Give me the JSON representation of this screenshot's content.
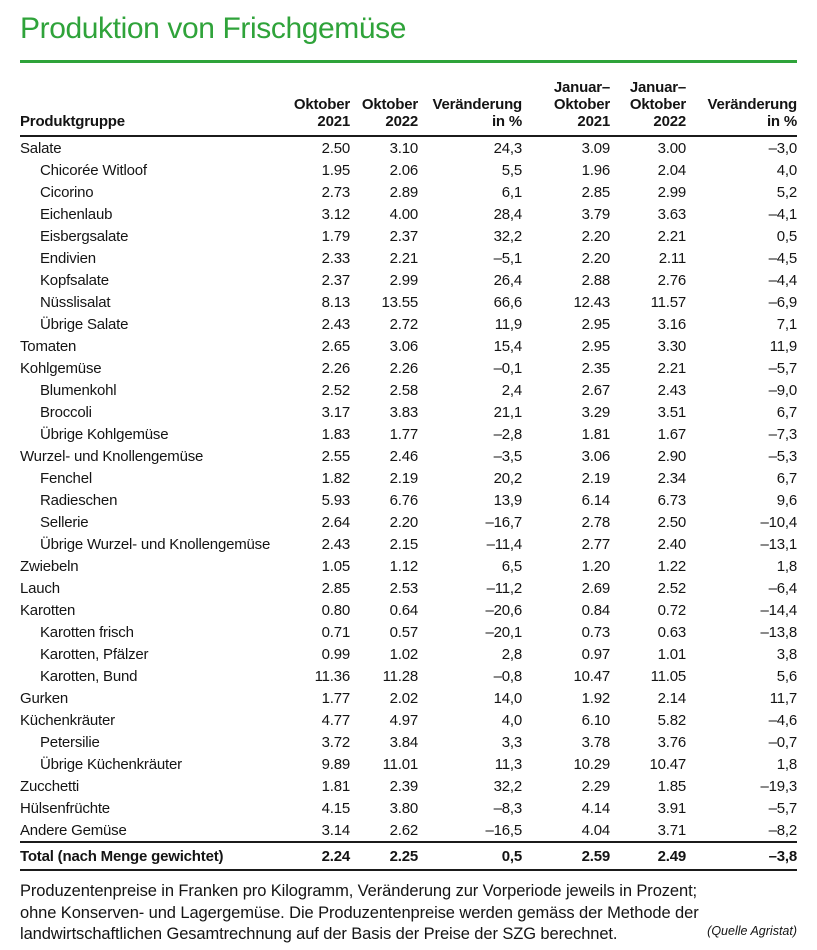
{
  "title": "Produktion von Frischgemüse",
  "colors": {
    "accent_green": "#2fa33a",
    "text": "#141414",
    "rule": "#1b1b1b"
  },
  "table": {
    "header": {
      "product_col": "Produktgruppe",
      "cols": [
        "Oktober\n2021",
        "Oktober\n2022",
        "Veränderung\nin %",
        "Januar–\nOktober\n2021",
        "Januar–\nOktober\n2022",
        "Veränderung\nin %"
      ]
    },
    "rows": [
      {
        "label": "Salate",
        "indent": false,
        "total": false,
        "v": [
          "2.50",
          "3.10",
          "24,3",
          "3.09",
          "3.00",
          "–3,0"
        ]
      },
      {
        "label": "Chicorée Witloof",
        "indent": true,
        "total": false,
        "v": [
          "1.95",
          "2.06",
          "5,5",
          "1.96",
          "2.04",
          "4,0"
        ]
      },
      {
        "label": "Cicorino",
        "indent": true,
        "total": false,
        "v": [
          "2.73",
          "2.89",
          "6,1",
          "2.85",
          "2.99",
          "5,2"
        ]
      },
      {
        "label": "Eichenlaub",
        "indent": true,
        "total": false,
        "v": [
          "3.12",
          "4.00",
          "28,4",
          "3.79",
          "3.63",
          "–4,1"
        ]
      },
      {
        "label": "Eisbergsalate",
        "indent": true,
        "total": false,
        "v": [
          "1.79",
          "2.37",
          "32,2",
          "2.20",
          "2.21",
          "0,5"
        ]
      },
      {
        "label": "Endivien",
        "indent": true,
        "total": false,
        "v": [
          "2.33",
          "2.21",
          "–5,1",
          "2.20",
          "2.11",
          "–4,5"
        ]
      },
      {
        "label": "Kopfsalate",
        "indent": true,
        "total": false,
        "v": [
          "2.37",
          "2.99",
          "26,4",
          "2.88",
          "2.76",
          "–4,4"
        ]
      },
      {
        "label": "Nüsslisalat",
        "indent": true,
        "total": false,
        "v": [
          "8.13",
          "13.55",
          "66,6",
          "12.43",
          "11.57",
          "–6,9"
        ]
      },
      {
        "label": "Übrige Salate",
        "indent": true,
        "total": false,
        "v": [
          "2.43",
          "2.72",
          "11,9",
          "2.95",
          "3.16",
          "7,1"
        ]
      },
      {
        "label": "Tomaten",
        "indent": false,
        "total": false,
        "v": [
          "2.65",
          "3.06",
          "15,4",
          "2.95",
          "3.30",
          "11,9"
        ]
      },
      {
        "label": "Kohlgemüse",
        "indent": false,
        "total": false,
        "v": [
          "2.26",
          "2.26",
          "–0,1",
          "2.35",
          "2.21",
          "–5,7"
        ]
      },
      {
        "label": "Blumenkohl",
        "indent": true,
        "total": false,
        "v": [
          "2.52",
          "2.58",
          "2,4",
          "2.67",
          "2.43",
          "–9,0"
        ]
      },
      {
        "label": "Broccoli",
        "indent": true,
        "total": false,
        "v": [
          "3.17",
          "3.83",
          "21,1",
          "3.29",
          "3.51",
          "6,7"
        ]
      },
      {
        "label": "Übrige Kohlgemüse",
        "indent": true,
        "total": false,
        "v": [
          "1.83",
          "1.77",
          "–2,8",
          "1.81",
          "1.67",
          "–7,3"
        ]
      },
      {
        "label": "Wurzel- und Knollengemüse",
        "indent": false,
        "total": false,
        "v": [
          "2.55",
          "2.46",
          "–3,5",
          "3.06",
          "2.90",
          "–5,3"
        ]
      },
      {
        "label": "Fenchel",
        "indent": true,
        "total": false,
        "v": [
          "1.82",
          "2.19",
          "20,2",
          "2.19",
          "2.34",
          "6,7"
        ]
      },
      {
        "label": "Radieschen",
        "indent": true,
        "total": false,
        "v": [
          "5.93",
          "6.76",
          "13,9",
          "6.14",
          "6.73",
          "9,6"
        ]
      },
      {
        "label": "Sellerie",
        "indent": true,
        "total": false,
        "v": [
          "2.64",
          "2.20",
          "–16,7",
          "2.78",
          "2.50",
          "–10,4"
        ]
      },
      {
        "label": "Übrige Wurzel- und Knollengemüse",
        "indent": true,
        "total": false,
        "v": [
          "2.43",
          "2.15",
          "–11,4",
          "2.77",
          "2.40",
          "–13,1"
        ]
      },
      {
        "label": "Zwiebeln",
        "indent": false,
        "total": false,
        "v": [
          "1.05",
          "1.12",
          "6,5",
          "1.20",
          "1.22",
          "1,8"
        ]
      },
      {
        "label": "Lauch",
        "indent": false,
        "total": false,
        "v": [
          "2.85",
          "2.53",
          "–11,2",
          "2.69",
          "2.52",
          "–6,4"
        ]
      },
      {
        "label": "Karotten",
        "indent": false,
        "total": false,
        "v": [
          "0.80",
          "0.64",
          "–20,6",
          "0.84",
          "0.72",
          "–14,4"
        ]
      },
      {
        "label": "Karotten frisch",
        "indent": true,
        "total": false,
        "v": [
          "0.71",
          "0.57",
          "–20,1",
          "0.73",
          "0.63",
          "–13,8"
        ]
      },
      {
        "label": "Karotten, Pfälzer",
        "indent": true,
        "total": false,
        "v": [
          "0.99",
          "1.02",
          "2,8",
          "0.97",
          "1.01",
          "3,8"
        ]
      },
      {
        "label": "Karotten, Bund",
        "indent": true,
        "total": false,
        "v": [
          "11.36",
          "11.28",
          "–0,8",
          "10.47",
          "11.05",
          "5,6"
        ]
      },
      {
        "label": "Gurken",
        "indent": false,
        "total": false,
        "v": [
          "1.77",
          "2.02",
          "14,0",
          "1.92",
          "2.14",
          "11,7"
        ]
      },
      {
        "label": "Küchenkräuter",
        "indent": false,
        "total": false,
        "v": [
          "4.77",
          "4.97",
          "4,0",
          "6.10",
          "5.82",
          "–4,6"
        ]
      },
      {
        "label": "Petersilie",
        "indent": true,
        "total": false,
        "v": [
          "3.72",
          "3.84",
          "3,3",
          "3.78",
          "3.76",
          "–0,7"
        ]
      },
      {
        "label": "Übrige Küchenkräuter",
        "indent": true,
        "total": false,
        "v": [
          "9.89",
          "11.01",
          "11,3",
          "10.29",
          "10.47",
          "1,8"
        ]
      },
      {
        "label": "Zucchetti",
        "indent": false,
        "total": false,
        "v": [
          "1.81",
          "2.39",
          "32,2",
          "2.29",
          "1.85",
          "–19,3"
        ]
      },
      {
        "label": "Hülsenfrüchte",
        "indent": false,
        "total": false,
        "v": [
          "4.15",
          "3.80",
          "–8,3",
          "4.14",
          "3.91",
          "–5,7"
        ]
      },
      {
        "label": "Andere Gemüse",
        "indent": false,
        "total": false,
        "v": [
          "3.14",
          "2.62",
          "–16,5",
          "4.04",
          "3.71",
          "–8,2"
        ]
      },
      {
        "label": "Total (nach Menge gewichtet)",
        "indent": false,
        "total": true,
        "v": [
          "2.24",
          "2.25",
          "0,5",
          "2.59",
          "2.49",
          "–3,8"
        ]
      }
    ]
  },
  "footer": {
    "text": "Produzentenpreise in Franken pro Kilogramm, Veränderung zur Vorperiode jeweils in Prozent;\nohne Konserven- und Lagergemüse. Die Produzentenpreise werden gemäss der Methode der\nlandwirtschaftlichen Gesamtrechnung auf der Basis der Preise der SZG berechnet.",
    "source": "(Quelle Agristat)"
  }
}
